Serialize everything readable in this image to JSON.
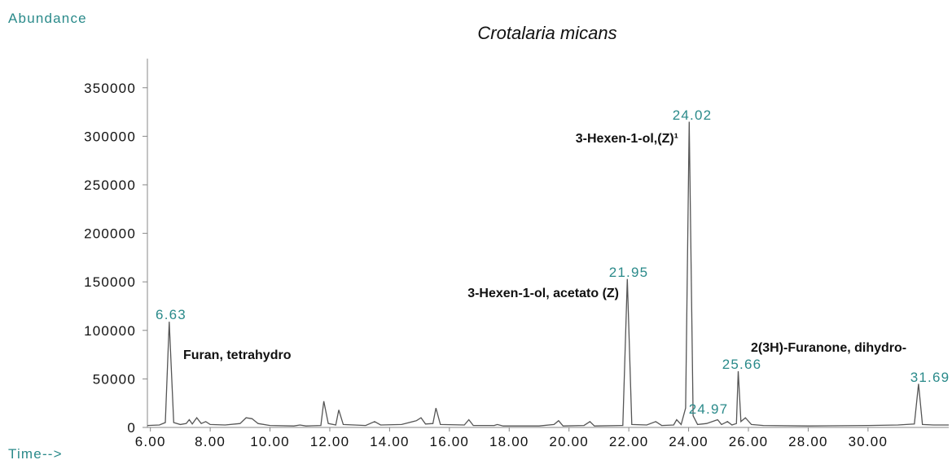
{
  "chart_data": {
    "type": "line",
    "title": "Crotalaria micans",
    "y_label": "Abundance",
    "x_label": "Time-->",
    "color": "#555555",
    "x": [
      5.9,
      6.3,
      6.5,
      6.63,
      6.78,
      7.0,
      7.2,
      7.3,
      7.4,
      7.55,
      7.7,
      7.85,
      8.0,
      8.5,
      9.0,
      9.2,
      9.4,
      9.6,
      10.0,
      10.8,
      11.0,
      11.2,
      11.7,
      11.8,
      11.95,
      12.2,
      12.3,
      12.45,
      13.2,
      13.5,
      13.7,
      14.4,
      14.9,
      15.05,
      15.2,
      15.45,
      15.55,
      15.7,
      16.5,
      16.65,
      16.8,
      17.5,
      17.6,
      17.8,
      19.0,
      19.5,
      19.65,
      19.8,
      20.5,
      20.7,
      20.85,
      21.8,
      21.95,
      22.1,
      22.6,
      22.9,
      23.1,
      23.5,
      23.6,
      23.75,
      23.9,
      24.02,
      24.15,
      24.3,
      24.6,
      24.97,
      25.1,
      25.3,
      25.45,
      25.6,
      25.66,
      25.75,
      25.9,
      26.1,
      26.5,
      28.0,
      30.0,
      31.0,
      31.55,
      31.69,
      31.82,
      32.2,
      32.7
    ],
    "values": [
      2000,
      2500,
      5000,
      109000,
      5000,
      3000,
      4000,
      8000,
      3500,
      10000,
      4000,
      6000,
      3000,
      2500,
      4000,
      10000,
      9000,
      4000,
      2000,
      1500,
      2500,
      1500,
      2000,
      27000,
      4000,
      2500,
      18000,
      3000,
      2000,
      6000,
      2500,
      3000,
      7000,
      10000,
      3500,
      4000,
      20000,
      3000,
      2500,
      8000,
      2000,
      2000,
      3000,
      1500,
      1500,
      3000,
      7000,
      1500,
      2000,
      6000,
      1500,
      2000,
      153000,
      3000,
      2500,
      6000,
      2000,
      2500,
      8000,
      3000,
      20000,
      315000,
      12000,
      3000,
      4000,
      8000,
      3000,
      6000,
      2500,
      4000,
      58000,
      6000,
      10000,
      3000,
      2000,
      1500,
      2000,
      2500,
      3500,
      45000,
      3000,
      2500,
      2500
    ],
    "xlim": [
      5.9,
      32.7
    ],
    "ylim": [
      0,
      380000
    ],
    "xticks": [
      {
        "value": 6,
        "label": "6.00"
      },
      {
        "value": 8,
        "label": "8.00"
      },
      {
        "value": 10,
        "label": "10.00"
      },
      {
        "value": 12,
        "label": "12.00"
      },
      {
        "value": 14,
        "label": "14.00"
      },
      {
        "value": 16,
        "label": "16.00"
      },
      {
        "value": 18,
        "label": "18.00"
      },
      {
        "value": 20,
        "label": "20.00"
      },
      {
        "value": 22,
        "label": "22.00"
      },
      {
        "value": 24,
        "label": "24.00"
      },
      {
        "value": 26,
        "label": "26.00"
      },
      {
        "value": 28,
        "label": "28.00"
      },
      {
        "value": 30,
        "label": "30.00"
      }
    ],
    "yticks": [
      0,
      50000,
      100000,
      150000,
      200000,
      250000,
      300000,
      350000
    ],
    "peak_labels": [
      "6.63",
      "21.95",
      "24.02",
      "24.97",
      "25.66",
      "31.69"
    ],
    "compound_labels": [
      "Furan, tetrahydro",
      "3-Hexen-1-ol, acetato (Z)",
      "3-Hexen-1-ol,(Z)¹",
      "2(3H)-Furanone, dihydro-"
    ]
  }
}
